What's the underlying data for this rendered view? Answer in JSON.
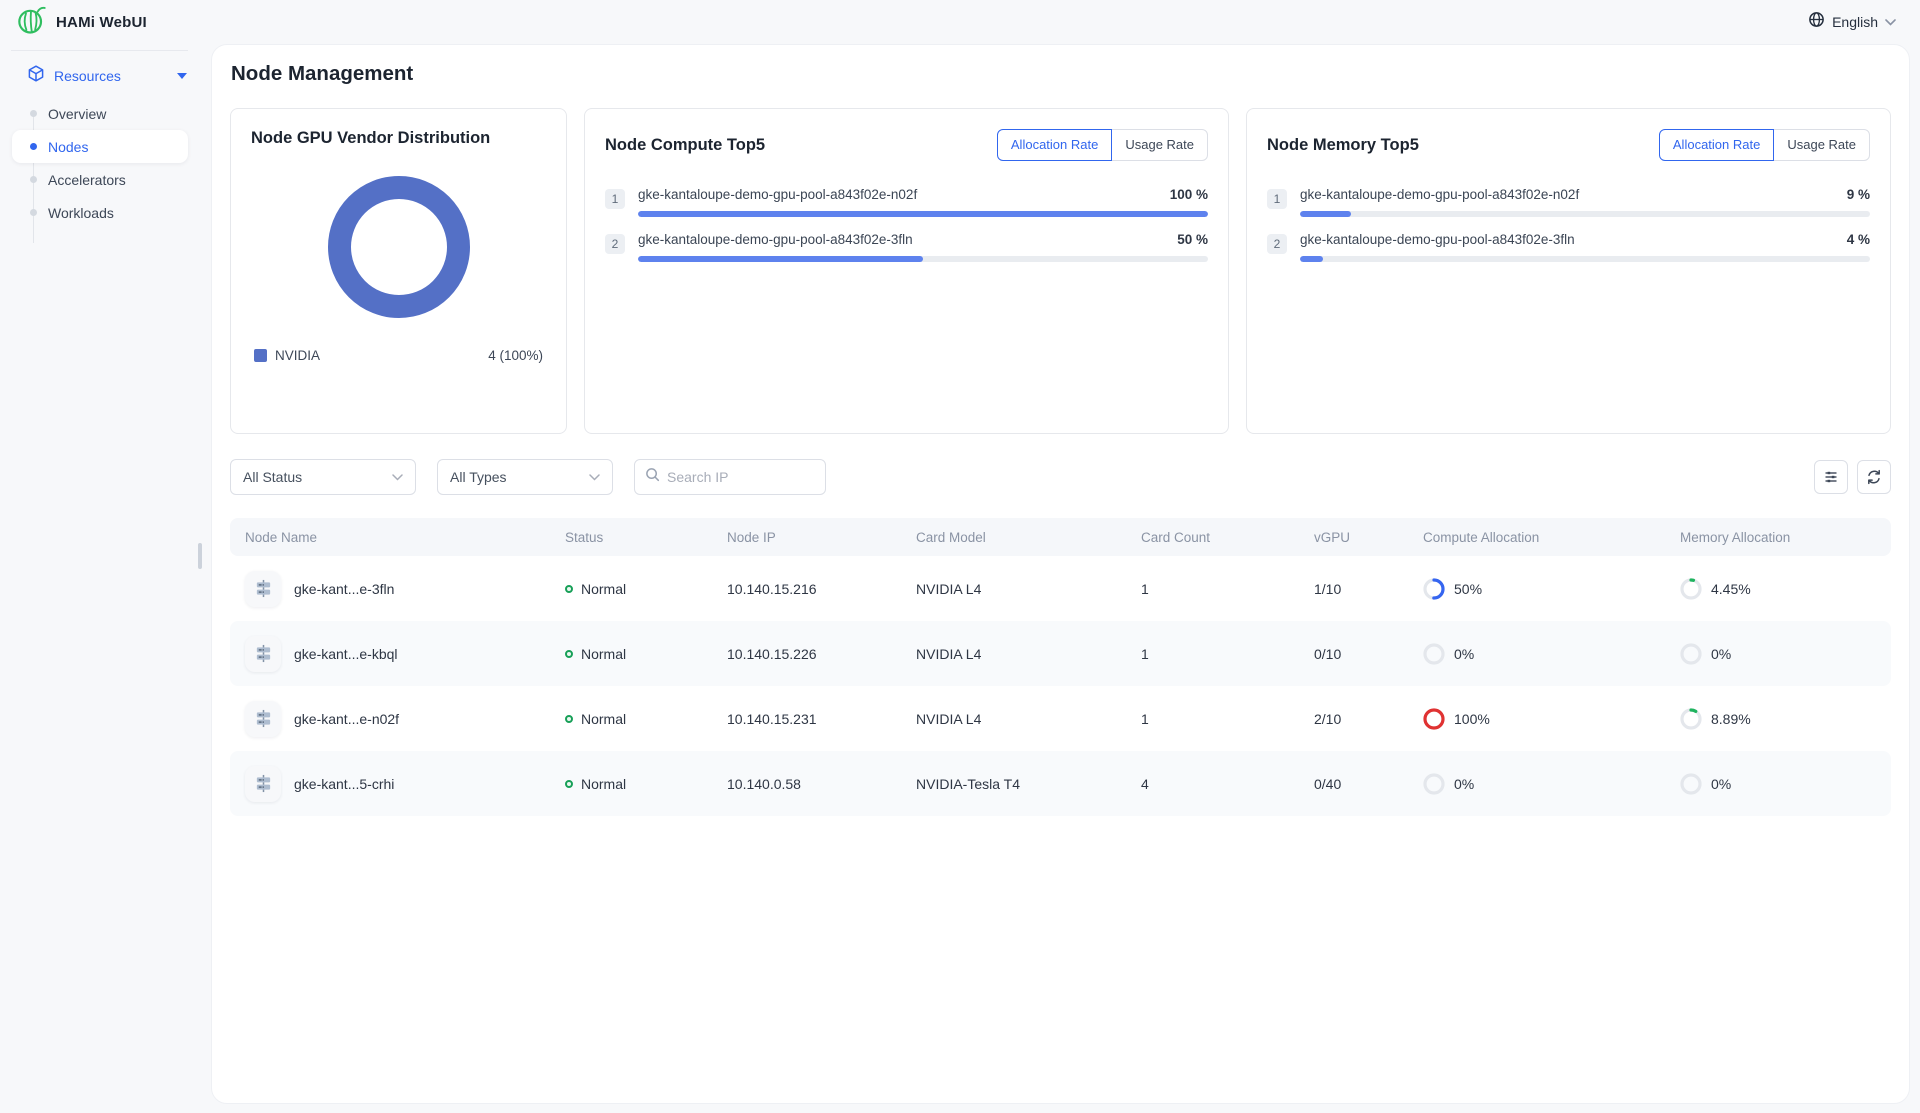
{
  "colors": {
    "primary": "#3166ee",
    "donut": "#5470c6",
    "bar": "#5e82ee",
    "status": "#18a058"
  },
  "app": {
    "title": "HAMi WebUI",
    "language": "English"
  },
  "sidebar": {
    "section_label": "Resources",
    "items": [
      {
        "label": "Overview"
      },
      {
        "label": "Nodes"
      },
      {
        "label": "Accelerators"
      },
      {
        "label": "Workloads"
      }
    ]
  },
  "page": {
    "title": "Node Management"
  },
  "cards": {
    "vendor": {
      "title": "Node GPU Vendor Distribution",
      "legend": {
        "label": "NVIDIA",
        "value": "4 (100%)"
      },
      "chart": {
        "type": "pie",
        "slices": [
          {
            "label": "NVIDIA",
            "count": 4,
            "percent": 100
          }
        ]
      }
    },
    "compute": {
      "title": "Node Compute Top5",
      "tabs": [
        "Allocation Rate",
        "Usage Rate"
      ],
      "active_tab": "Allocation Rate",
      "items": [
        {
          "rank": "1",
          "name": "gke-kantaloupe-demo-gpu-pool-a843f02e-n02f",
          "value": "100 %",
          "pct": 100
        },
        {
          "rank": "2",
          "name": "gke-kantaloupe-demo-gpu-pool-a843f02e-3fln",
          "value": "50 %",
          "pct": 50
        }
      ]
    },
    "memory": {
      "title": "Node Memory Top5",
      "tabs": [
        "Allocation Rate",
        "Usage Rate"
      ],
      "active_tab": "Allocation Rate",
      "items": [
        {
          "rank": "1",
          "name": "gke-kantaloupe-demo-gpu-pool-a843f02e-n02f",
          "value": "9 %",
          "pct": 9
        },
        {
          "rank": "2",
          "name": "gke-kantaloupe-demo-gpu-pool-a843f02e-3fln",
          "value": "4 %",
          "pct": 4
        }
      ]
    }
  },
  "filters": {
    "status": "All Status",
    "types": "All Types",
    "search_placeholder": "Search IP"
  },
  "table": {
    "columns": [
      "Node Name",
      "Status",
      "Node IP",
      "Card Model",
      "Card Count",
      "vGPU",
      "Compute Allocation",
      "Memory Allocation"
    ],
    "rows": [
      {
        "name": "gke-kant...e-3fln",
        "status": "Normal",
        "ip": "10.140.15.216",
        "model": "NVIDIA L4",
        "count": "1",
        "vgpu": "1/10",
        "compute": {
          "label": "50%",
          "pct": 50,
          "color": "#3565f0"
        },
        "memory": {
          "label": "4.45%",
          "pct": 4.45,
          "color": "#1fb35f"
        }
      },
      {
        "name": "gke-kant...e-kbql",
        "status": "Normal",
        "ip": "10.140.15.226",
        "model": "NVIDIA L4",
        "count": "1",
        "vgpu": "0/10",
        "compute": {
          "label": "0%",
          "pct": 0,
          "color": "#3565f0"
        },
        "memory": {
          "label": "0%",
          "pct": 0,
          "color": "#1fb35f"
        }
      },
      {
        "name": "gke-kant...e-n02f",
        "status": "Normal",
        "ip": "10.140.15.231",
        "model": "NVIDIA L4",
        "count": "1",
        "vgpu": "2/10",
        "compute": {
          "label": "100%",
          "pct": 100,
          "color": "#e03232"
        },
        "memory": {
          "label": "8.89%",
          "pct": 8.89,
          "color": "#1fb35f"
        }
      },
      {
        "name": "gke-kant...5-crhi",
        "status": "Normal",
        "ip": "10.140.0.58",
        "model": "NVIDIA-Tesla T4",
        "count": "4",
        "vgpu": "0/40",
        "compute": {
          "label": "0%",
          "pct": 0,
          "color": "#3565f0"
        },
        "memory": {
          "label": "0%",
          "pct": 0,
          "color": "#1fb35f"
        }
      }
    ]
  }
}
